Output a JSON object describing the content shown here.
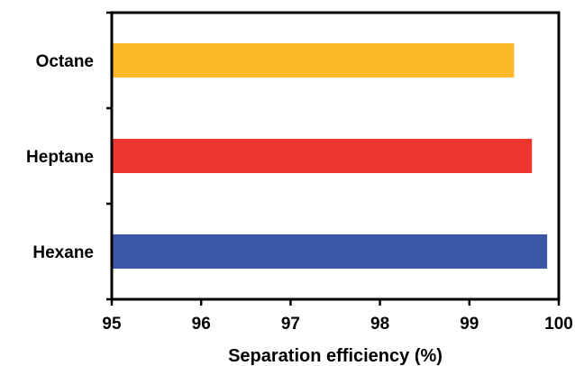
{
  "chart_data": {
    "type": "bar",
    "orientation": "horizontal",
    "categories": [
      "Octane",
      "Heptane",
      "Hexane"
    ],
    "values": [
      99.5,
      99.7,
      99.87
    ],
    "colors": [
      "#fbb829",
      "#ee3530",
      "#3d57a8"
    ],
    "title": "",
    "xlabel": "Separation efficiency (%)",
    "ylabel": "",
    "xlim": [
      95,
      100
    ],
    "xticks": [
      "95",
      "96",
      "97",
      "98",
      "99",
      "100"
    ],
    "grid": false,
    "legend": "none"
  }
}
